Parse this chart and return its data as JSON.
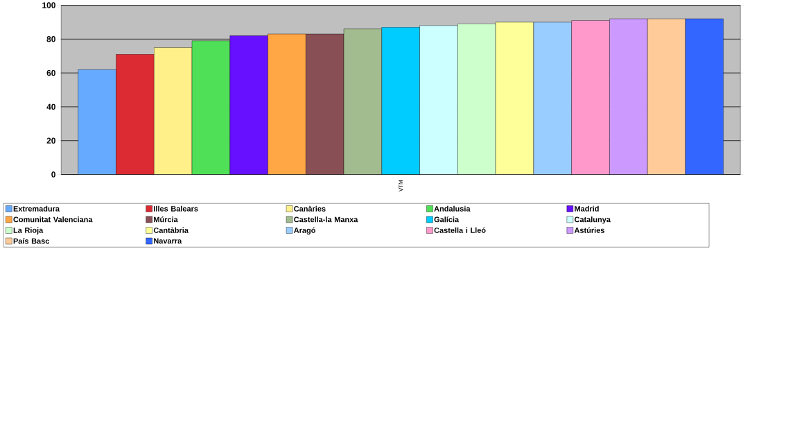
{
  "chart_data": {
    "type": "bar",
    "categories": [
      "VTM"
    ],
    "series": [
      {
        "name": "Extremadura",
        "color": "#66aaff",
        "values": [
          62
        ]
      },
      {
        "name": "Illes Balears",
        "color": "#dd2b33",
        "values": [
          71
        ]
      },
      {
        "name": "Canàries",
        "color": "#fff08a",
        "values": [
          75
        ]
      },
      {
        "name": "Andalusia",
        "color": "#50e058",
        "values": [
          79
        ]
      },
      {
        "name": "Madrid",
        "color": "#6610ff",
        "values": [
          82
        ]
      },
      {
        "name": "Comunitat Valenciana",
        "color": "#ffa645",
        "values": [
          83
        ]
      },
      {
        "name": "Múrcia",
        "color": "#885055",
        "values": [
          83
        ]
      },
      {
        "name": "Castella-la Manxa",
        "color": "#a2bc90",
        "values": [
          86
        ]
      },
      {
        "name": "Galícia",
        "color": "#00ccff",
        "values": [
          87
        ]
      },
      {
        "name": "Catalunya",
        "color": "#ccffff",
        "values": [
          88
        ]
      },
      {
        "name": "La Rioja",
        "color": "#ccffcc",
        "values": [
          89
        ]
      },
      {
        "name": "Cantàbria",
        "color": "#ffff99",
        "values": [
          90
        ]
      },
      {
        "name": "Aragó",
        "color": "#99ccff",
        "values": [
          90
        ]
      },
      {
        "name": "Castella i Lleó",
        "color": "#ff99cc",
        "values": [
          91
        ]
      },
      {
        "name": "Astúries",
        "color": "#cc99ff",
        "values": [
          92
        ]
      },
      {
        "name": "País Basc",
        "color": "#ffcc99",
        "values": [
          92
        ]
      },
      {
        "name": "Navarra",
        "color": "#3366ff",
        "values": [
          92
        ]
      }
    ],
    "ylim": [
      0,
      100
    ],
    "yticks": [
      0,
      20,
      40,
      60,
      80,
      100
    ],
    "grid": "y",
    "legend": "bottom"
  }
}
